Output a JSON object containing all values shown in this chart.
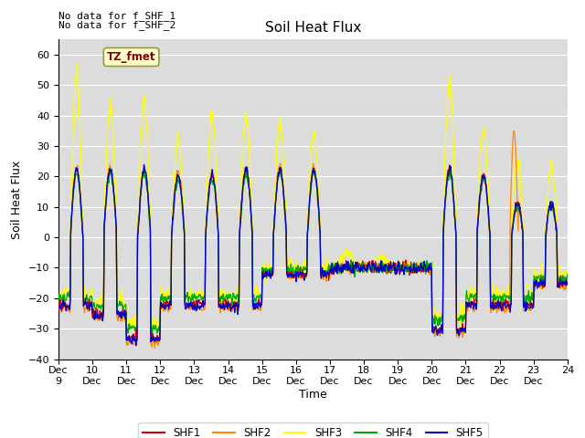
{
  "title": "Soil Heat Flux",
  "ylabel": "Soil Heat Flux",
  "xlabel": "Time",
  "ylim": [
    -40,
    65
  ],
  "yticks": [
    -40,
    -30,
    -20,
    -10,
    0,
    10,
    20,
    30,
    40,
    50,
    60
  ],
  "bg_color": "#dcdcdc",
  "annotation_text1": "No data for f_SHF_1",
  "annotation_text2": "No data for f_SHF_2",
  "legend_label": "TZ_fmet",
  "series_colors": {
    "SHF1": "#cc0000",
    "SHF2": "#ff8800",
    "SHF3": "#ffff00",
    "SHF4": "#00aa00",
    "SHF5": "#0000cc"
  },
  "xtick_labels": [
    "Dec\n9",
    "10\nDec",
    "11\nDec",
    "12\nDec",
    "13\nDec",
    "14\nDec",
    "15\nDec",
    "16\nDec",
    "17\nDec",
    "18\nDec",
    "19\nDec",
    "20\nDec",
    "21\nDec",
    "22\nDec",
    "23\nDec",
    "24"
  ],
  "num_points": 960
}
